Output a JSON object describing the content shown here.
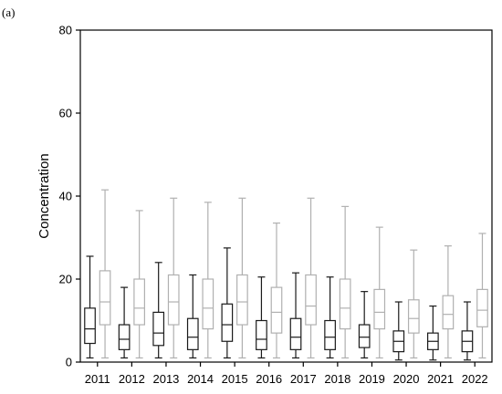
{
  "panel_label": "(a)",
  "chart_data": {
    "type": "box",
    "title": "",
    "xlabel": "",
    "ylabel": "Concentration",
    "ylim": [
      0,
      80
    ],
    "yticks": [
      0,
      20,
      40,
      60,
      80
    ],
    "grid": false,
    "legend": "none",
    "categories": [
      "2011",
      "2012",
      "2013",
      "2014",
      "2015",
      "2016",
      "2017",
      "2018",
      "2019",
      "2020",
      "2021",
      "2022"
    ],
    "series": [
      {
        "color": "#1a1a1a",
        "boxes": [
          {
            "min": 1,
            "q1": 4.5,
            "median": 8,
            "q3": 13,
            "max": 25.5
          },
          {
            "min": 1,
            "q1": 3,
            "median": 5.5,
            "q3": 9,
            "max": 18
          },
          {
            "min": 1,
            "q1": 4,
            "median": 7,
            "q3": 12,
            "max": 24
          },
          {
            "min": 1,
            "q1": 3,
            "median": 6,
            "q3": 10.5,
            "max": 21
          },
          {
            "min": 1,
            "q1": 5,
            "median": 9,
            "q3": 14,
            "max": 27.5
          },
          {
            "min": 1,
            "q1": 3,
            "median": 5.5,
            "q3": 10,
            "max": 20.5
          },
          {
            "min": 1,
            "q1": 3,
            "median": 6,
            "q3": 10.5,
            "max": 21.5
          },
          {
            "min": 1,
            "q1": 3,
            "median": 6,
            "q3": 10,
            "max": 20.5
          },
          {
            "min": 1,
            "q1": 3.5,
            "median": 6,
            "q3": 9,
            "max": 17
          },
          {
            "min": 0.5,
            "q1": 2.5,
            "median": 5,
            "q3": 7.5,
            "max": 14.5
          },
          {
            "min": 0.5,
            "q1": 3,
            "median": 5,
            "q3": 7,
            "max": 13.5
          },
          {
            "min": 0.5,
            "q1": 2.5,
            "median": 5,
            "q3": 7.5,
            "max": 14.5
          }
        ]
      },
      {
        "color": "#b0b0b0",
        "boxes": [
          {
            "min": 1,
            "q1": 9,
            "median": 14.5,
            "q3": 22,
            "max": 41.5
          },
          {
            "min": 1,
            "q1": 9,
            "median": 13,
            "q3": 20,
            "max": 36.5
          },
          {
            "min": 1,
            "q1": 9,
            "median": 14.5,
            "q3": 21,
            "max": 39.5
          },
          {
            "min": 1,
            "q1": 8,
            "median": 13,
            "q3": 20,
            "max": 38.5
          },
          {
            "min": 1,
            "q1": 9,
            "median": 14.5,
            "q3": 21,
            "max": 39.5
          },
          {
            "min": 1,
            "q1": 7,
            "median": 12,
            "q3": 18,
            "max": 33.5
          },
          {
            "min": 1,
            "q1": 9,
            "median": 13.5,
            "q3": 21,
            "max": 39.5
          },
          {
            "min": 1,
            "q1": 8,
            "median": 13,
            "q3": 20,
            "max": 37.5
          },
          {
            "min": 1,
            "q1": 8,
            "median": 12,
            "q3": 17.5,
            "max": 32.5
          },
          {
            "min": 1,
            "q1": 7,
            "median": 10.5,
            "q3": 15,
            "max": 27
          },
          {
            "min": 1,
            "q1": 8,
            "median": 11.5,
            "q3": 16,
            "max": 28
          },
          {
            "min": 1,
            "q1": 8.5,
            "median": 12.5,
            "q3": 17.5,
            "max": 31
          }
        ]
      }
    ]
  }
}
